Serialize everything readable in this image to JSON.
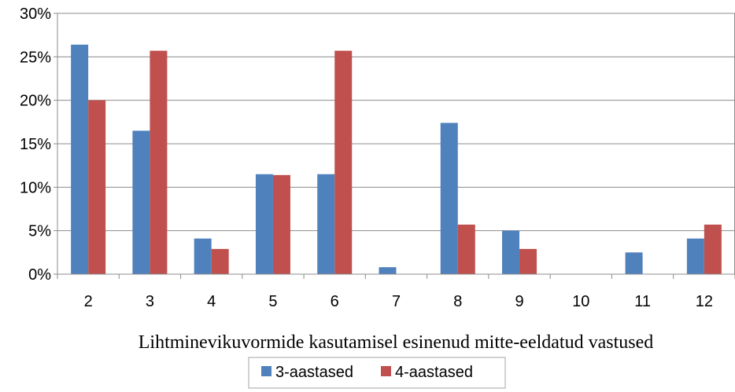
{
  "chart_data": {
    "type": "bar",
    "categories": [
      "2",
      "3",
      "4",
      "5",
      "6",
      "7",
      "8",
      "9",
      "10",
      "11",
      "12"
    ],
    "series": [
      {
        "name": "3-aastased",
        "color": "#4F81BD",
        "values": [
          26.4,
          16.5,
          4.1,
          11.5,
          11.5,
          0.8,
          17.4,
          5.0,
          0,
          2.5,
          4.1
        ]
      },
      {
        "name": "4-aastased",
        "color": "#C0504D",
        "values": [
          20.0,
          25.7,
          2.9,
          11.4,
          25.7,
          0,
          5.7,
          2.9,
          0,
          0,
          5.7
        ]
      }
    ],
    "yticks": [
      "0%",
      "5%",
      "10%",
      "15%",
      "20%",
      "25%",
      "30%"
    ],
    "ylim": [
      0,
      30
    ],
    "xlabel": "Lihtminevikuvormide kasutamisel esinenud mitte-eeldatud vastused",
    "ylabel": "",
    "title": "",
    "grid": true,
    "legend_position": "bottom"
  }
}
